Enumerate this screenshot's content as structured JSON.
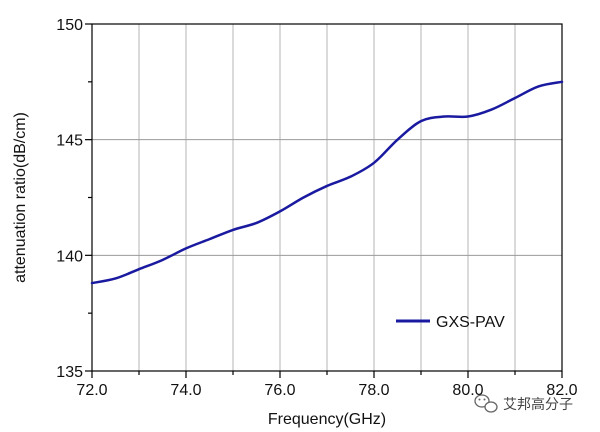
{
  "chart_data": {
    "type": "line",
    "title": "",
    "xlabel": "Frequency(GHz)",
    "ylabel": "attenuation ratio(dB/cm)",
    "xlim": [
      72,
      82
    ],
    "ylim": [
      135,
      150
    ],
    "x_ticks": [
      72,
      74,
      76,
      78,
      80,
      82
    ],
    "x_tick_labels": [
      "72.0",
      "74.0",
      "76.0",
      "78.0",
      "80.0",
      "82.0"
    ],
    "y_ticks": [
      135,
      140,
      145,
      150
    ],
    "y_tick_labels": [
      "135",
      "140",
      "145",
      "150"
    ],
    "grid": "on",
    "legend_position": "bottom-right",
    "series": [
      {
        "name": "GXS-PAV",
        "color": "#1a1aa0",
        "x": [
          72.0,
          72.5,
          73.0,
          73.5,
          74.0,
          74.5,
          75.0,
          75.5,
          76.0,
          76.5,
          77.0,
          77.5,
          78.0,
          78.5,
          79.0,
          79.5,
          80.0,
          80.5,
          81.0,
          81.5,
          82.0
        ],
        "y": [
          138.8,
          139.0,
          139.4,
          139.8,
          140.3,
          140.7,
          141.1,
          141.4,
          141.9,
          142.5,
          143.0,
          143.4,
          144.0,
          145.0,
          145.8,
          146.0,
          146.0,
          146.3,
          146.8,
          147.3,
          147.5
        ]
      }
    ]
  },
  "watermark": {
    "text": "艾邦高分子",
    "icon": "wechat-icon"
  }
}
